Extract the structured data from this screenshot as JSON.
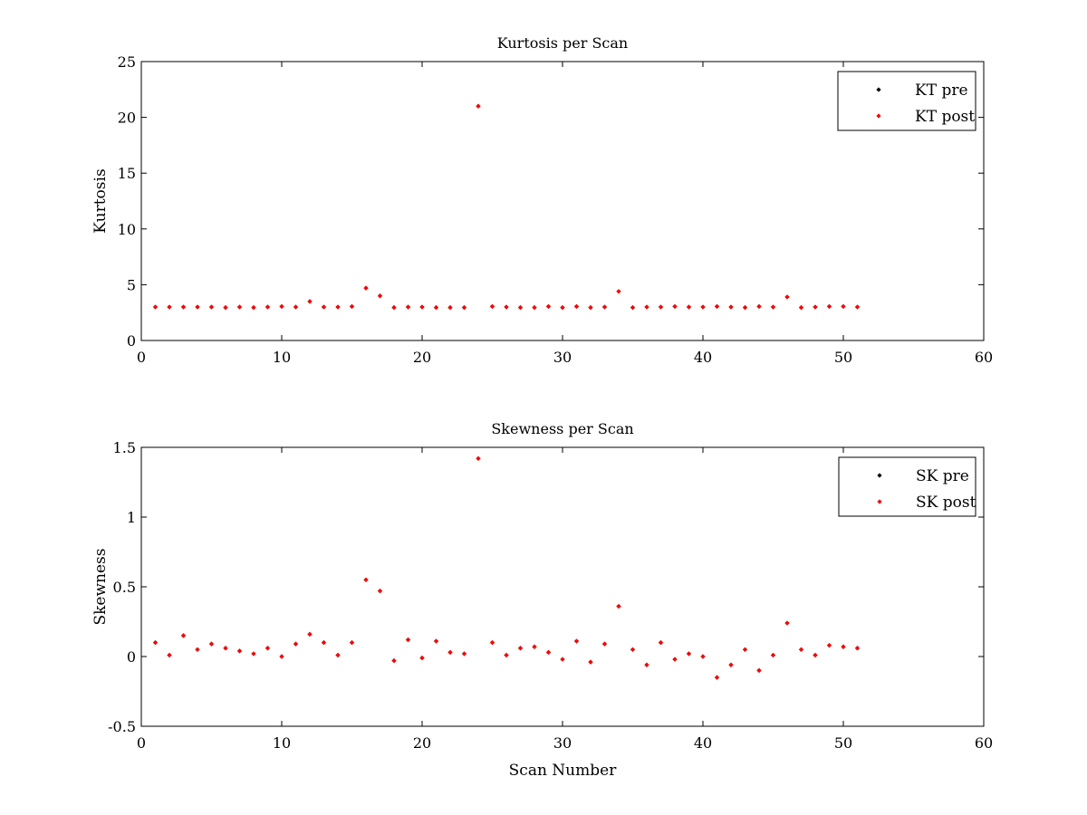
{
  "chart_data": [
    {
      "type": "scatter",
      "title": "Kurtosis per Scan",
      "xlabel": "",
      "ylabel": "Kurtosis",
      "xlim": [
        0,
        60
      ],
      "ylim": [
        0,
        25
      ],
      "xticks": [
        0,
        10,
        20,
        30,
        40,
        50,
        60
      ],
      "yticks": [
        0,
        5,
        10,
        15,
        20,
        25
      ],
      "xtick_labels": [
        "0",
        "10",
        "20",
        "30",
        "40",
        "50",
        "60"
      ],
      "ytick_labels": [
        "0",
        "5",
        "10",
        "15",
        "20",
        "25"
      ],
      "grid": false,
      "legend_position": "top-right",
      "series": [
        {
          "name": "KT pre",
          "color": "#000000",
          "x": [
            1,
            2,
            3,
            4,
            5,
            6,
            7,
            8,
            9,
            10,
            11,
            12,
            13,
            14,
            15,
            16,
            17,
            18,
            19,
            20,
            21,
            22,
            23,
            24,
            25,
            26,
            27,
            28,
            29,
            30,
            31,
            32,
            33,
            34,
            35,
            36,
            37,
            38,
            39,
            40,
            41,
            42,
            43,
            44,
            45,
            46,
            47,
            48,
            49,
            50,
            51
          ],
          "y": [
            3.0,
            3.0,
            3.0,
            3.0,
            3.0,
            2.95,
            3.0,
            2.95,
            3.0,
            3.05,
            3.0,
            3.5,
            3.0,
            3.0,
            3.05,
            4.7,
            4.0,
            2.95,
            3.0,
            3.0,
            2.95,
            2.95,
            2.95,
            21.0,
            3.05,
            3.0,
            2.95,
            2.95,
            3.05,
            2.95,
            3.05,
            2.95,
            3.0,
            4.4,
            2.95,
            3.0,
            3.0,
            3.05,
            3.0,
            3.0,
            3.05,
            3.0,
            2.95,
            3.05,
            3.0,
            3.9,
            2.95,
            3.0,
            3.05,
            3.05,
            3.0
          ]
        },
        {
          "name": "KT post",
          "color": "#ff0000",
          "x": [
            1,
            2,
            3,
            4,
            5,
            6,
            7,
            8,
            9,
            10,
            11,
            12,
            13,
            14,
            15,
            16,
            17,
            18,
            19,
            20,
            21,
            22,
            23,
            24,
            25,
            26,
            27,
            28,
            29,
            30,
            31,
            32,
            33,
            34,
            35,
            36,
            37,
            38,
            39,
            40,
            41,
            42,
            43,
            44,
            45,
            46,
            47,
            48,
            49,
            50,
            51
          ],
          "y": [
            3.0,
            3.0,
            3.0,
            3.0,
            3.0,
            2.95,
            3.0,
            2.95,
            3.0,
            3.05,
            3.0,
            3.5,
            3.0,
            3.0,
            3.05,
            4.7,
            4.0,
            2.95,
            3.0,
            3.0,
            2.95,
            2.95,
            2.95,
            21.0,
            3.05,
            3.0,
            2.95,
            2.95,
            3.05,
            2.95,
            3.05,
            2.95,
            3.0,
            4.4,
            2.95,
            3.0,
            3.0,
            3.05,
            3.0,
            3.0,
            3.05,
            3.0,
            2.95,
            3.05,
            3.0,
            3.9,
            2.95,
            3.0,
            3.05,
            3.05,
            3.0
          ]
        }
      ]
    },
    {
      "type": "scatter",
      "title": "Skewness per Scan",
      "xlabel": "Scan Number",
      "ylabel": "Skewness",
      "xlim": [
        0,
        60
      ],
      "ylim": [
        -0.5,
        1.5
      ],
      "xticks": [
        0,
        10,
        20,
        30,
        40,
        50,
        60
      ],
      "yticks": [
        -0.5,
        0,
        0.5,
        1,
        1.5
      ],
      "xtick_labels": [
        "0",
        "10",
        "20",
        "30",
        "40",
        "50",
        "60"
      ],
      "ytick_labels": [
        "-0.5",
        "0",
        "0.5",
        "1",
        "1.5"
      ],
      "grid": false,
      "legend_position": "top-right",
      "series": [
        {
          "name": "SK pre",
          "color": "#000000",
          "x": [
            1,
            2,
            3,
            4,
            5,
            6,
            7,
            8,
            9,
            10,
            11,
            12,
            13,
            14,
            15,
            16,
            17,
            18,
            19,
            20,
            21,
            22,
            23,
            24,
            25,
            26,
            27,
            28,
            29,
            30,
            31,
            32,
            33,
            34,
            35,
            36,
            37,
            38,
            39,
            40,
            41,
            42,
            43,
            44,
            45,
            46,
            47,
            48,
            49,
            50,
            51
          ],
          "y": [
            0.1,
            0.01,
            0.15,
            0.05,
            0.09,
            0.06,
            0.04,
            0.02,
            0.06,
            0.0,
            0.09,
            0.16,
            0.1,
            0.01,
            0.1,
            0.55,
            0.47,
            -0.03,
            0.12,
            -0.01,
            0.11,
            0.03,
            0.02,
            1.42,
            0.1,
            0.01,
            0.06,
            0.07,
            0.03,
            -0.02,
            0.11,
            -0.04,
            0.09,
            0.36,
            0.05,
            -0.06,
            0.1,
            -0.02,
            0.02,
            0.0,
            -0.15,
            -0.06,
            0.05,
            -0.1,
            0.01,
            0.24,
            0.05,
            0.01,
            0.08,
            0.07,
            0.06
          ]
        },
        {
          "name": "SK post",
          "color": "#ff0000",
          "x": [
            1,
            2,
            3,
            4,
            5,
            6,
            7,
            8,
            9,
            10,
            11,
            12,
            13,
            14,
            15,
            16,
            17,
            18,
            19,
            20,
            21,
            22,
            23,
            24,
            25,
            26,
            27,
            28,
            29,
            30,
            31,
            32,
            33,
            34,
            35,
            36,
            37,
            38,
            39,
            40,
            41,
            42,
            43,
            44,
            45,
            46,
            47,
            48,
            49,
            50,
            51
          ],
          "y": [
            0.1,
            0.01,
            0.15,
            0.05,
            0.09,
            0.06,
            0.04,
            0.02,
            0.06,
            0.0,
            0.09,
            0.16,
            0.1,
            0.01,
            0.1,
            0.55,
            0.47,
            -0.03,
            0.12,
            -0.01,
            0.11,
            0.03,
            0.02,
            1.42,
            0.1,
            0.01,
            0.06,
            0.07,
            0.03,
            -0.02,
            0.11,
            -0.04,
            0.09,
            0.36,
            0.05,
            -0.06,
            0.1,
            -0.02,
            0.02,
            0.0,
            -0.15,
            -0.06,
            0.05,
            -0.1,
            0.01,
            0.24,
            0.05,
            0.01,
            0.08,
            0.07,
            0.06
          ]
        }
      ]
    }
  ]
}
